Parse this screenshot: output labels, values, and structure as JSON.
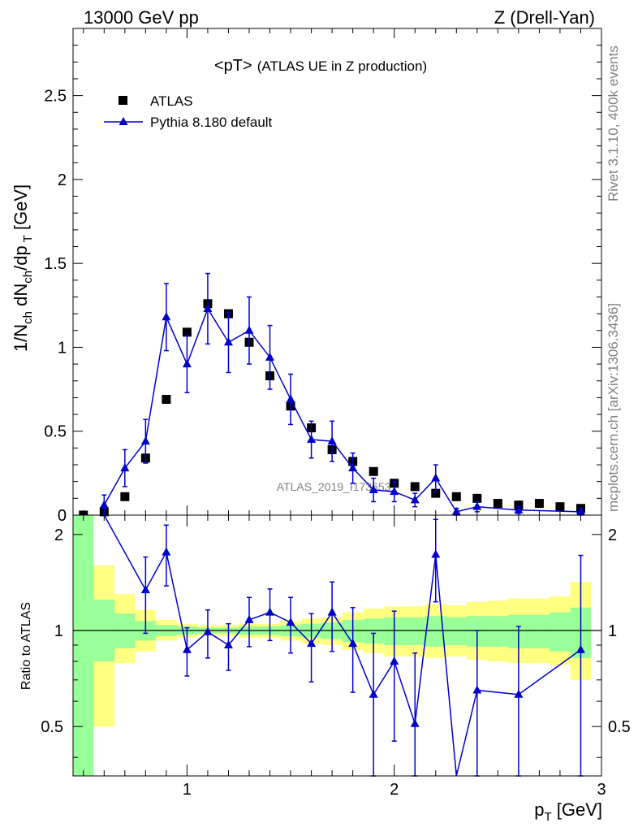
{
  "header": {
    "left": "13000 GeV pp",
    "right": "Z (Drell-Yan)"
  },
  "side": {
    "top": "Rivet 3.1.10,  400k events",
    "bottom": "mcplots.cern.ch [arXiv:1306.3436]"
  },
  "chart_data": [
    {
      "type": "scatter",
      "panel": "main",
      "title": "<pT>",
      "subtitle": "(ATLAS UE in Z production)",
      "ylabel": "1/N_ch dN_ch/dp_T [GeV]",
      "xlabel": "p_T [GeV]",
      "xlim": [
        0.45,
        3.0
      ],
      "ylim": [
        0,
        2.9
      ],
      "yticks": [
        0,
        0.5,
        1,
        1.5,
        2,
        2.5
      ],
      "ytick_labels": [
        "0",
        "0.5",
        "1",
        "1.5",
        "2",
        "2.5"
      ],
      "watermark": "ATLAS_2019_I1736531",
      "legend": {
        "position": "top-left",
        "entries": [
          "ATLAS",
          "Pythia 8.180 default"
        ]
      },
      "series": [
        {
          "name": "ATLAS",
          "marker": "square",
          "color": "#000000",
          "x": [
            0.5,
            0.6,
            0.7,
            0.8,
            0.9,
            1.0,
            1.1,
            1.2,
            1.3,
            1.4,
            1.5,
            1.6,
            1.7,
            1.8,
            1.9,
            2.0,
            2.1,
            2.2,
            2.3,
            2.4,
            2.5,
            2.6,
            2.7,
            2.8,
            2.9
          ],
          "y": [
            0.0,
            0.02,
            0.11,
            0.34,
            0.69,
            1.09,
            1.26,
            1.2,
            1.03,
            0.83,
            0.65,
            0.52,
            0.39,
            0.32,
            0.26,
            0.19,
            0.17,
            0.13,
            0.11,
            0.1,
            0.07,
            0.06,
            0.07,
            0.05,
            0.04
          ]
        },
        {
          "name": "Pythia 8.180 default",
          "marker": "triangle",
          "color": "#0000cc",
          "x": [
            0.6,
            0.7,
            0.8,
            0.9,
            1.0,
            1.1,
            1.2,
            1.3,
            1.4,
            1.5,
            1.6,
            1.7,
            1.8,
            1.9,
            2.0,
            2.1,
            2.2,
            2.3,
            2.4,
            2.6,
            2.9
          ],
          "y": [
            0.06,
            0.28,
            0.44,
            1.18,
            0.9,
            1.23,
            1.03,
            1.1,
            0.94,
            0.69,
            0.45,
            0.44,
            0.28,
            0.15,
            0.14,
            0.09,
            0.22,
            0.02,
            0.05,
            0.03,
            0.02
          ],
          "err": [
            0.06,
            0.11,
            0.13,
            0.2,
            0.17,
            0.21,
            0.18,
            0.2,
            0.19,
            0.15,
            0.11,
            0.12,
            0.09,
            0.07,
            0.06,
            0.04,
            0.08,
            0.02,
            0.03,
            0.02,
            0.02
          ]
        }
      ]
    },
    {
      "type": "line",
      "panel": "ratio",
      "ylabel": "Ratio to ATLAS",
      "xlabel": "p_T [GeV]",
      "xlim": [
        0.45,
        3.0
      ],
      "ylim": [
        0.35,
        2.3
      ],
      "yscale": "log",
      "yticks": [
        0.5,
        1,
        2
      ],
      "ytick_labels": [
        "0.5",
        "1",
        "2"
      ],
      "xticks": [
        1,
        2,
        3
      ],
      "xtick_labels": [
        "1",
        "2",
        "3"
      ],
      "reference_line": 1.0,
      "bands": {
        "edges": [
          0.45,
          0.55,
          0.65,
          0.75,
          0.85,
          0.95,
          1.05,
          1.15,
          1.25,
          1.35,
          1.45,
          1.55,
          1.65,
          1.75,
          1.85,
          1.95,
          2.05,
          2.15,
          2.25,
          2.35,
          2.45,
          2.55,
          2.65,
          2.75,
          2.85,
          2.95
        ],
        "green": {
          "color": "#99ff99",
          "lo": [
            0.3,
            0.8,
            0.88,
            0.93,
            0.96,
            0.97,
            0.98,
            0.98,
            0.97,
            0.97,
            0.96,
            0.95,
            0.94,
            0.92,
            0.91,
            0.9,
            0.9,
            0.89,
            0.9,
            0.89,
            0.89,
            0.88,
            0.88,
            0.86,
            0.82
          ],
          "hi": [
            2.5,
            1.25,
            1.13,
            1.07,
            1.04,
            1.03,
            1.02,
            1.02,
            1.03,
            1.03,
            1.04,
            1.05,
            1.06,
            1.08,
            1.09,
            1.1,
            1.1,
            1.11,
            1.1,
            1.11,
            1.11,
            1.12,
            1.12,
            1.14,
            1.18
          ]
        },
        "yellow": {
          "color": "#ffff80",
          "lo": [
            0.3,
            0.5,
            0.79,
            0.86,
            0.93,
            0.95,
            0.97,
            0.96,
            0.95,
            0.95,
            0.93,
            0.91,
            0.9,
            0.87,
            0.85,
            0.83,
            0.83,
            0.82,
            0.83,
            0.81,
            0.8,
            0.79,
            0.79,
            0.78,
            0.7
          ],
          "hi": [
            2.5,
            1.6,
            1.3,
            1.16,
            1.08,
            1.05,
            1.04,
            1.04,
            1.05,
            1.05,
            1.07,
            1.09,
            1.1,
            1.14,
            1.17,
            1.19,
            1.19,
            1.21,
            1.2,
            1.23,
            1.24,
            1.26,
            1.26,
            1.28,
            1.42
          ]
        }
      },
      "series": [
        {
          "name": "Pythia 8.180 default",
          "color": "#0000cc",
          "x": [
            0.6,
            0.8,
            0.9,
            1.0,
            1.1,
            1.2,
            1.3,
            1.4,
            1.5,
            1.6,
            1.7,
            1.8,
            1.9,
            2.0,
            2.1,
            2.2,
            2.3,
            2.4,
            2.6,
            2.9
          ],
          "y": [
            3.0,
            1.34,
            1.76,
            0.87,
            0.99,
            0.9,
            1.08,
            1.14,
            1.06,
            0.91,
            1.14,
            0.91,
            0.63,
            0.8,
            0.51,
            1.73,
            0.3,
            0.65,
            0.63,
            0.87
          ],
          "err": [
            0.0,
            0.36,
            0.38,
            0.15,
            0.17,
            0.15,
            0.19,
            0.21,
            0.21,
            0.22,
            0.28,
            0.27,
            0.35,
            0.35,
            0.34,
            0.5,
            0.0,
            0.35,
            0.4,
            0.85
          ]
        }
      ]
    }
  ]
}
